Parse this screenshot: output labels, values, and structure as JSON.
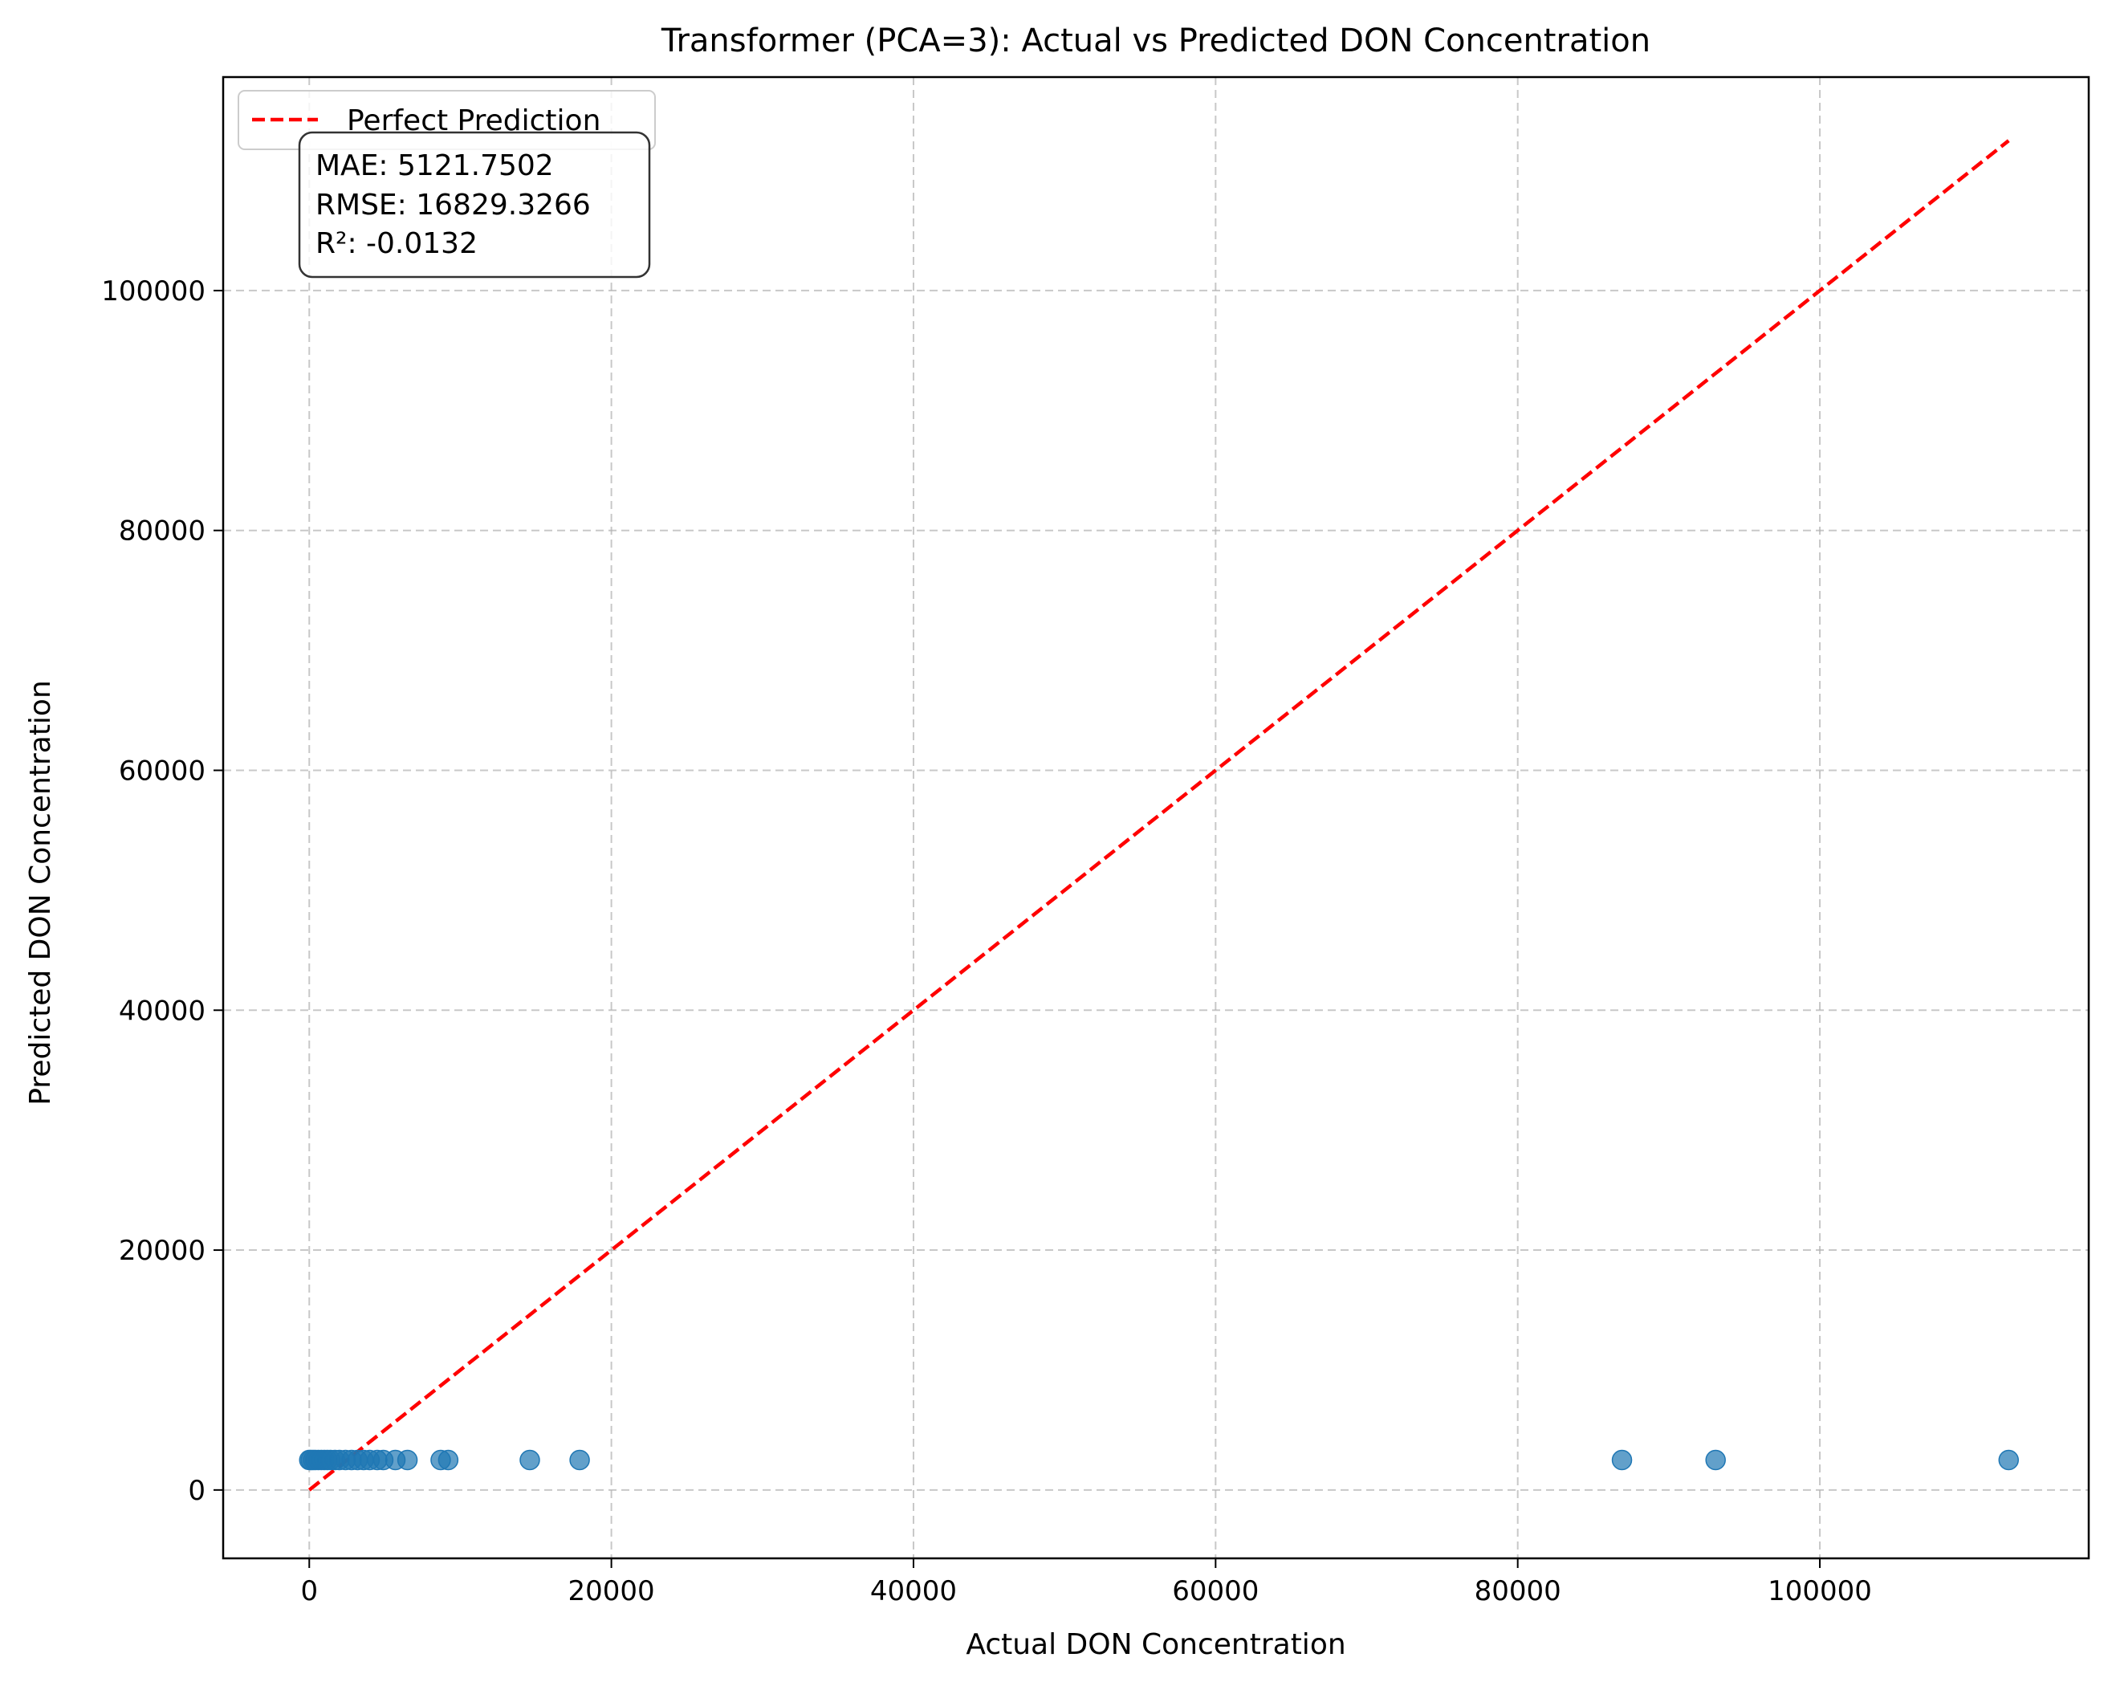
{
  "chart_data": {
    "type": "scatter",
    "title": "Transformer (PCA=3): Actual vs Predicted DON Concentration",
    "xlabel": "Actual DON Concentration",
    "ylabel": "Predicted DON Concentration",
    "xlim": [
      -5700,
      117800
    ],
    "ylim": [
      -5700,
      117800
    ],
    "xticks": [
      0,
      20000,
      40000,
      60000,
      80000,
      100000
    ],
    "yticks": [
      0,
      20000,
      40000,
      60000,
      80000,
      100000
    ],
    "grid": true,
    "legend_position": "top-left",
    "legend": [
      {
        "label": "Perfect Prediction",
        "style": "dashed",
        "color": "#ff0000"
      }
    ],
    "stats_box": {
      "lines": [
        "MAE: 5121.7502",
        "RMSE: 16829.3266",
        "R²: -0.0132"
      ]
    },
    "reference_line": {
      "x": [
        0,
        112500
      ],
      "y": [
        0,
        112500
      ],
      "color": "#ff0000"
    },
    "series": [
      {
        "color": "#1f77b4",
        "points": [
          {
            "x": 0,
            "y": 2500
          },
          {
            "x": 100,
            "y": 2500
          },
          {
            "x": 250,
            "y": 2500
          },
          {
            "x": 400,
            "y": 2500
          },
          {
            "x": 600,
            "y": 2500
          },
          {
            "x": 800,
            "y": 2500
          },
          {
            "x": 1000,
            "y": 2500
          },
          {
            "x": 1200,
            "y": 2500
          },
          {
            "x": 1400,
            "y": 2500
          },
          {
            "x": 1700,
            "y": 2500
          },
          {
            "x": 2000,
            "y": 2500
          },
          {
            "x": 2400,
            "y": 2500
          },
          {
            "x": 2800,
            "y": 2500
          },
          {
            "x": 3200,
            "y": 2500
          },
          {
            "x": 3600,
            "y": 2500
          },
          {
            "x": 4000,
            "y": 2500
          },
          {
            "x": 4500,
            "y": 2500
          },
          {
            "x": 4900,
            "y": 2500
          },
          {
            "x": 5700,
            "y": 2500
          },
          {
            "x": 6500,
            "y": 2500
          },
          {
            "x": 8700,
            "y": 2500
          },
          {
            "x": 9200,
            "y": 2500
          },
          {
            "x": 14600,
            "y": 2500
          },
          {
            "x": 17900,
            "y": 2500
          },
          {
            "x": 86900,
            "y": 2500
          },
          {
            "x": 93100,
            "y": 2500
          },
          {
            "x": 112500,
            "y": 2500
          }
        ]
      }
    ]
  }
}
